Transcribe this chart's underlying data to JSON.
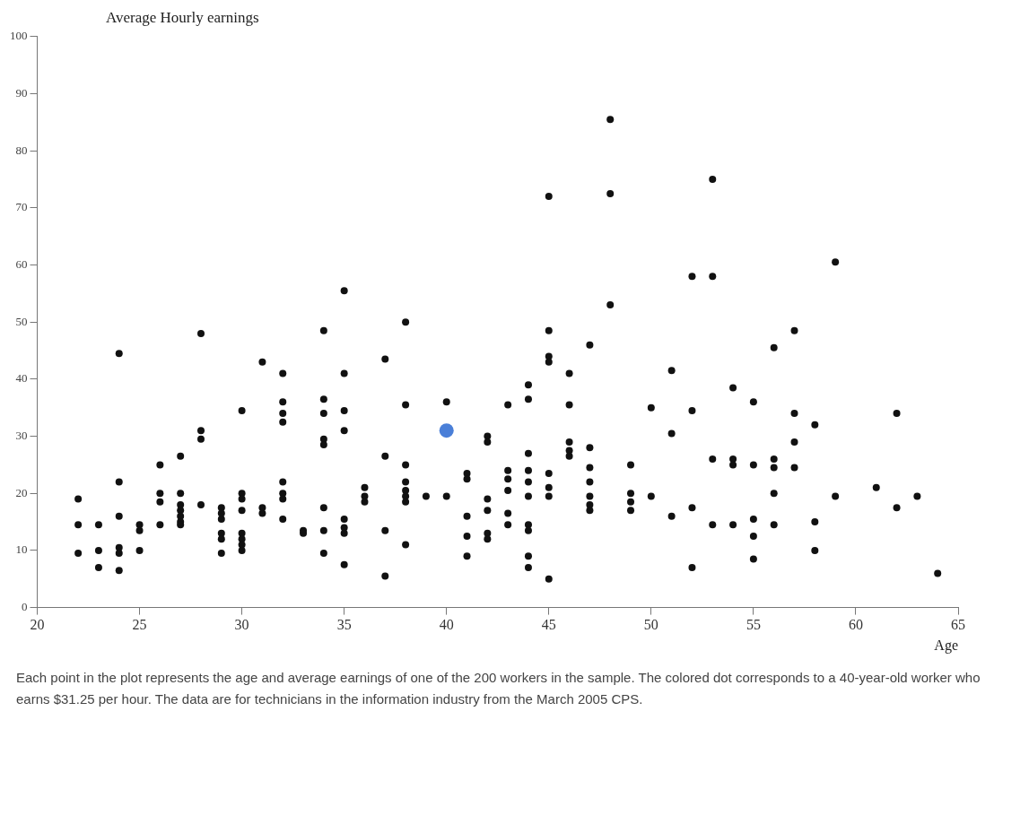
{
  "chart_data": {
    "type": "scatter",
    "ylabel": "Average Hourly earnings",
    "xlabel": "Age",
    "xlim": [
      20,
      65
    ],
    "xticks": [
      20,
      25,
      30,
      35,
      40,
      45,
      50,
      55,
      60,
      65
    ],
    "ylim": [
      0,
      100
    ],
    "yticks": [
      0,
      10,
      20,
      30,
      40,
      50,
      60,
      70,
      80,
      90,
      100
    ],
    "grid": false,
    "legend": false,
    "marker": "circle",
    "series": [
      {
        "color": "#111111",
        "x": [
          22,
          22,
          22,
          23,
          23,
          23,
          24,
          24,
          24,
          24,
          24,
          24,
          25,
          25,
          25,
          26,
          26,
          26,
          26,
          27,
          27,
          27,
          27,
          27,
          27,
          27,
          28,
          28,
          28,
          28,
          29,
          29,
          29,
          29,
          29,
          29,
          30,
          30,
          30,
          30,
          30,
          30,
          30,
          30,
          31,
          31,
          31,
          32,
          32,
          32,
          32,
          32,
          32,
          32,
          32,
          33,
          33,
          34,
          34,
          34,
          34,
          34,
          34,
          34,
          34,
          35,
          35,
          35,
          35,
          35,
          35,
          35,
          35,
          36,
          36,
          36,
          37,
          37,
          37,
          37,
          38,
          38,
          38,
          38,
          38,
          38,
          38,
          38,
          39,
          40,
          40,
          41,
          41,
          41,
          41,
          41,
          42,
          42,
          42,
          42,
          42,
          42,
          43,
          43,
          43,
          43,
          43,
          43,
          44,
          44,
          44,
          44,
          44,
          44,
          44,
          44,
          44,
          44,
          45,
          45,
          45,
          45,
          45,
          45,
          45,
          45,
          46,
          46,
          46,
          46,
          46,
          47,
          47,
          47,
          47,
          47,
          47,
          47,
          48,
          48,
          48,
          49,
          49,
          49,
          49,
          50,
          50,
          51,
          51,
          51,
          52,
          52,
          52,
          52,
          53,
          53,
          53,
          53,
          54,
          54,
          54,
          54,
          55,
          55,
          55,
          55,
          55,
          56,
          56,
          56,
          56,
          56,
          57,
          57,
          57,
          57,
          58,
          58,
          58,
          59,
          59,
          61,
          62,
          62,
          63,
          64
        ],
        "values": [
          19,
          14.5,
          9.5,
          14.5,
          10,
          7,
          44.5,
          22,
          16,
          10.5,
          9.5,
          6.5,
          14.5,
          13.5,
          10,
          25,
          20,
          18.5,
          14.5,
          26.5,
          20,
          18,
          17,
          16,
          15,
          14.5,
          48,
          31,
          29.5,
          18,
          17.5,
          16.5,
          15.5,
          13,
          12,
          9.5,
          34.5,
          20,
          19,
          17,
          13,
          12,
          11,
          10,
          43,
          17.5,
          16.5,
          41,
          36,
          34,
          32.5,
          22,
          20,
          19,
          15.5,
          13.5,
          13,
          48.5,
          36.5,
          34,
          29.5,
          28.5,
          17.5,
          13.5,
          9.5,
          55.5,
          41,
          34.5,
          31,
          15.5,
          14,
          13,
          7.5,
          21,
          19.5,
          18.5,
          43.5,
          26.5,
          13.5,
          5.5,
          50,
          35.5,
          25,
          22,
          20.5,
          19.5,
          18.5,
          11,
          19.5,
          36,
          19.5,
          23.5,
          22.5,
          16,
          12.5,
          9,
          30,
          29,
          19,
          17,
          13,
          12,
          35.5,
          24,
          22.5,
          20.5,
          16.5,
          14.5,
          39,
          36.5,
          27,
          24,
          22,
          19.5,
          14.5,
          13.5,
          9,
          7,
          72,
          48.5,
          44,
          43,
          23.5,
          21,
          19.5,
          5,
          41,
          35.5,
          29,
          27.5,
          26.5,
          46,
          28,
          24.5,
          22,
          19.5,
          18,
          17,
          85.5,
          72.5,
          53,
          25,
          20,
          18.5,
          17,
          35,
          19.5,
          41.5,
          30.5,
          16,
          58,
          34.5,
          17.5,
          7,
          75,
          58,
          26,
          14.5,
          38.5,
          26,
          25,
          14.5,
          36,
          25,
          15.5,
          12.5,
          8.5,
          45.5,
          26,
          24.5,
          20,
          14.5,
          48.5,
          34,
          29,
          24.5,
          32,
          15,
          10,
          60.5,
          19.5,
          21,
          34,
          17.5,
          19.5,
          6
        ]
      },
      {
        "color": "#4a7fd8",
        "x": [
          40
        ],
        "values": [
          31
        ]
      }
    ],
    "annotations": [
      "Each point in the plot represents the age and average earnings of one of the 200 workers in the sample. The colored dot corresponds to a 40-year-old worker who earns $31.25 per hour. The data are for technicians in the information industry from the March 2005 CPS."
    ]
  }
}
